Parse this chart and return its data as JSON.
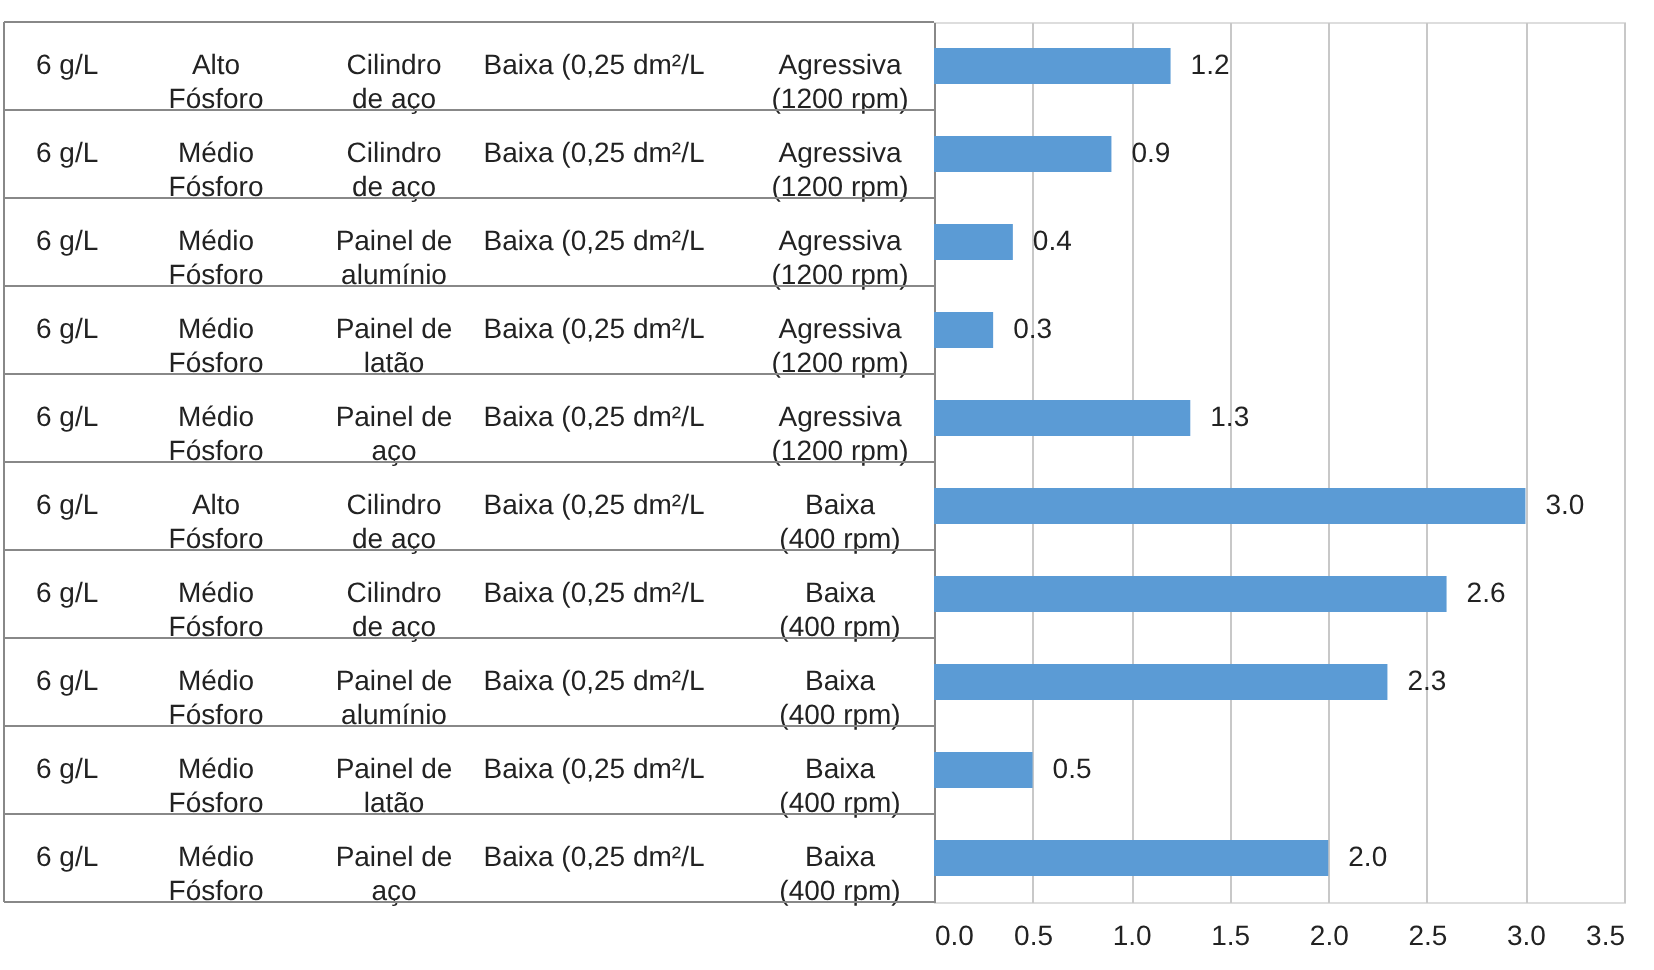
{
  "chart_data": {
    "type": "bar",
    "orientation": "horizontal",
    "categories": [
      [
        "6 g/L",
        "Alto Fósforo",
        "Cilindro de aço",
        "Baixa (0,25 dm²/L",
        "Agressiva (1200 rpm)"
      ],
      [
        "6 g/L",
        "Médio Fósforo",
        "Cilindro de aço",
        "Baixa (0,25 dm²/L",
        "Agressiva (1200 rpm)"
      ],
      [
        "6 g/L",
        "Médio Fósforo",
        "Painel de alumínio",
        "Baixa (0,25 dm²/L",
        "Agressiva (1200 rpm)"
      ],
      [
        "6 g/L",
        "Médio Fósforo",
        "Painel de latão",
        "Baixa (0,25 dm²/L",
        "Agressiva (1200 rpm)"
      ],
      [
        "6 g/L",
        "Médio Fósforo",
        "Painel de aço",
        "Baixa (0,25 dm²/L",
        "Agressiva (1200 rpm)"
      ],
      [
        "6 g/L",
        "Alto Fósforo",
        "Cilindro de aço",
        "Baixa (0,25 dm²/L",
        "Baixa (400 rpm)"
      ],
      [
        "6 g/L",
        "Médio Fósforo",
        "Cilindro de aço",
        "Baixa (0,25 dm²/L",
        "Baixa (400 rpm)"
      ],
      [
        "6 g/L",
        "Médio Fósforo",
        "Painel de alumínio",
        "Baixa (0,25 dm²/L",
        "Baixa (400 rpm)"
      ],
      [
        "6 g/L",
        "Médio Fósforo",
        "Painel de latão",
        "Baixa (0,25 dm²/L",
        "Baixa (400 rpm)"
      ],
      [
        "6 g/L",
        "Médio Fósforo",
        "Painel de aço",
        "Baixa (0,25 dm²/L",
        "Baixa (400 rpm)"
      ]
    ],
    "values": [
      1.2,
      0.9,
      0.4,
      0.3,
      1.3,
      3.0,
      2.6,
      2.3,
      0.5,
      2.0
    ],
    "color": "#5b9bd5",
    "xlim": [
      0,
      3.5
    ],
    "xticks": [
      {
        "value": 0,
        "label": "0.0"
      },
      0.5,
      {
        "value": 1,
        "label": "1.0"
      },
      1.5,
      {
        "value": 2,
        "label": "2.0"
      },
      2.5,
      {
        "value": 3,
        "label": "3.0"
      },
      3.5
    ],
    "value_labels": [
      "1.2",
      "0.9",
      "0.4",
      "0.3",
      "1.3",
      "3.0",
      "2.6",
      "2.3",
      "0.5",
      "2.0"
    ],
    "grid": "x"
  }
}
